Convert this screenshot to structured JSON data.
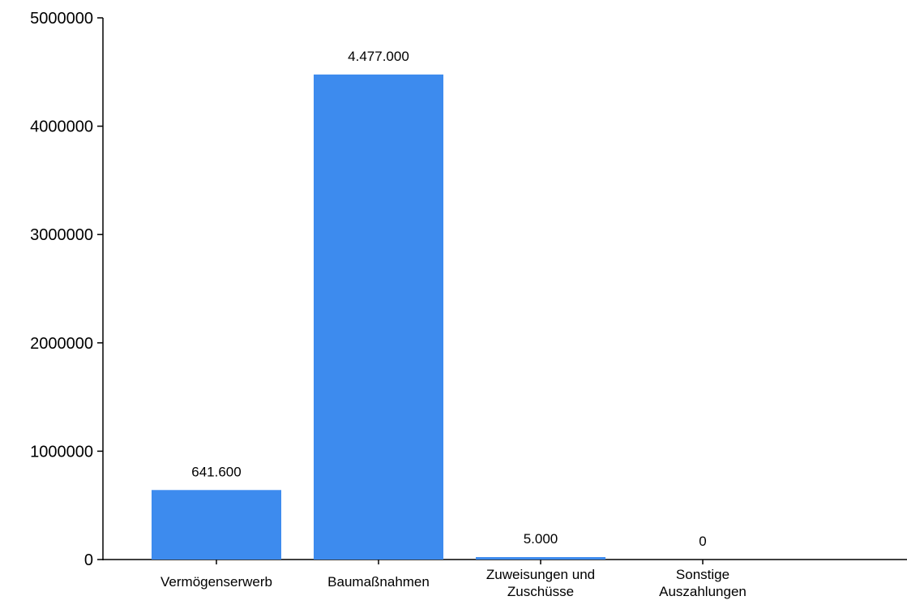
{
  "chart_data": {
    "type": "bar",
    "title": "",
    "xlabel": "",
    "ylabel": "",
    "categories": [
      [
        "Vermögenserwerb"
      ],
      [
        "Baumaßnahmen"
      ],
      [
        "Zuweisungen und",
        "Zuschüsse"
      ],
      [
        "Sonstige",
        "Auszahlungen"
      ]
    ],
    "values": [
      641600,
      4477000,
      5000,
      0
    ],
    "data_labels": [
      "641.600",
      "4.477.000",
      "5.000",
      "0"
    ],
    "ylim": [
      0,
      5000000
    ],
    "yticks": [
      0,
      1000000,
      2000000,
      3000000,
      4000000,
      5000000
    ],
    "ytick_labels": [
      "0",
      "1000000",
      "2000000",
      "3000000",
      "4000000",
      "5000000"
    ],
    "bar_color": "#3d8bee",
    "grid": false,
    "legend": "none"
  }
}
